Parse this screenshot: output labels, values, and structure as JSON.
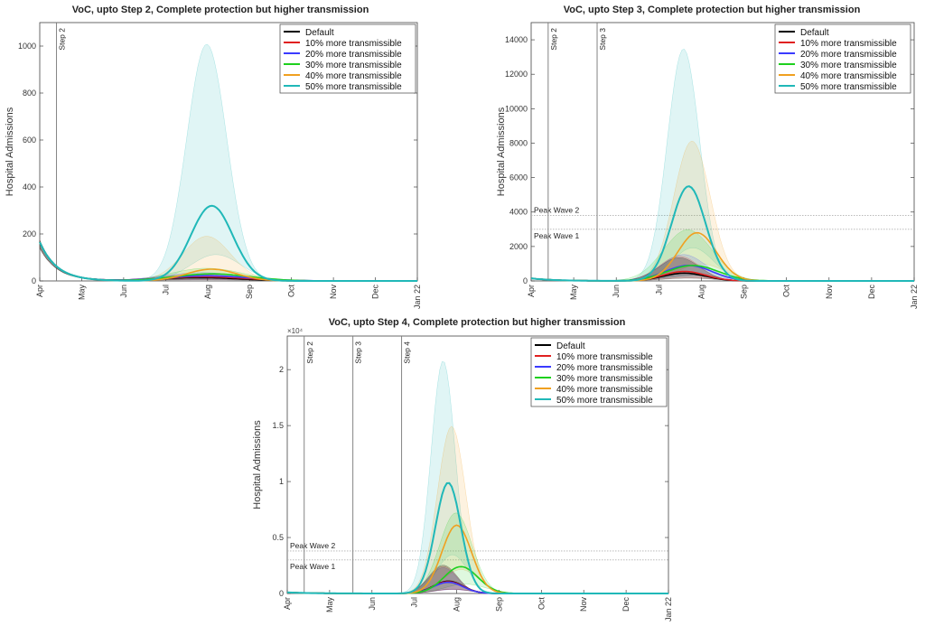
{
  "series_colors": [
    "#000000",
    "#e02020",
    "#3a3aff",
    "#1ed01e",
    "#f0a020",
    "#20b8b8"
  ],
  "chart_data": [
    {
      "type": "line",
      "title": "VoC, upto Step 2, Complete protection but higher transmission",
      "ylabel": "Hospital Admissions",
      "ylim": [
        0,
        1100
      ],
      "yticks": [
        0,
        200,
        400,
        600,
        800,
        1000
      ],
      "x_tick_labels": [
        "Apr",
        "May",
        "Jun",
        "Jul",
        "Aug",
        "Sep",
        "Oct",
        "Nov",
        "Dec",
        "Jan 22"
      ],
      "x_months_span": [
        0,
        9
      ],
      "y_exponent": "",
      "vlines": [
        {
          "x": 0.4,
          "label": "Step 2"
        }
      ],
      "hlines": [],
      "legend_position": "top-right",
      "series": [
        {
          "name": "Default",
          "peak_x": 3.8,
          "peak_y": 14,
          "width": 1.0,
          "hi_factor": 1.4,
          "start": 165,
          "decay": 0.9
        },
        {
          "name": "10% more transmissible",
          "peak_x": 3.9,
          "peak_y": 18,
          "width": 1.0,
          "hi_factor": 1.5,
          "start": 165,
          "decay": 0.9
        },
        {
          "name": "20% more transmissible",
          "peak_x": 4.0,
          "peak_y": 22,
          "width": 1.0,
          "hi_factor": 1.6,
          "start": 165,
          "decay": 0.9
        },
        {
          "name": "30% more transmissible",
          "peak_x": 4.1,
          "peak_y": 30,
          "width": 0.9,
          "hi_factor": 1.8,
          "start": 165,
          "decay": 0.9
        },
        {
          "name": "40% more transmissible",
          "peak_x": 4.1,
          "peak_y": 50,
          "width": 0.6,
          "hi_factor": 3.8,
          "start": 165,
          "decay": 0.9
        },
        {
          "name": "50% more transmissible",
          "peak_x": 4.1,
          "peak_y": 320,
          "width": 0.5,
          "hi_factor": 3.15,
          "start": 165,
          "decay": 0.9
        }
      ]
    },
    {
      "type": "line",
      "title": "VoC, upto Step 3, Complete protection but higher transmission",
      "ylabel": "Hospital Admissions",
      "ylim": [
        0,
        15000
      ],
      "yticks": [
        0,
        2000,
        4000,
        6000,
        8000,
        10000,
        12000,
        14000
      ],
      "x_tick_labels": [
        "Apr",
        "May",
        "Jun",
        "Jul",
        "Aug",
        "Sep",
        "Oct",
        "Nov",
        "Dec",
        "Jan 22"
      ],
      "x_months_span": [
        0,
        9
      ],
      "y_exponent": "",
      "vlines": [
        {
          "x": 0.4,
          "label": "Step 2"
        },
        {
          "x": 1.55,
          "label": "Step 3"
        }
      ],
      "hlines": [
        {
          "y": 3800,
          "label": "Peak Wave 2"
        },
        {
          "y": 3000,
          "label": "Peak Wave 1"
        }
      ],
      "legend_position": "top-right",
      "series": [
        {
          "name": "Default",
          "peak_x": 3.6,
          "peak_y": 450,
          "width": 0.5,
          "hi_factor": 3.0,
          "start": 150,
          "decay": 1.2
        },
        {
          "name": "10% more transmissible",
          "peak_x": 3.6,
          "peak_y": 550,
          "width": 0.5,
          "hi_factor": 2.6,
          "start": 150,
          "decay": 1.2
        },
        {
          "name": "20% more transmissible",
          "peak_x": 3.7,
          "peak_y": 900,
          "width": 0.55,
          "hi_factor": 1.7,
          "start": 150,
          "decay": 1.2
        },
        {
          "name": "30% more transmissible",
          "peak_x": 3.8,
          "peak_y": 900,
          "width": 0.6,
          "hi_factor": 3.3,
          "start": 150,
          "decay": 1.2
        },
        {
          "name": "40% more transmissible",
          "peak_x": 3.9,
          "peak_y": 2800,
          "width": 0.45,
          "hi_factor": 2.9,
          "start": 150,
          "decay": 1.2
        },
        {
          "name": "50% more transmissible",
          "peak_x": 3.7,
          "peak_y": 5500,
          "width": 0.4,
          "hi_factor": 2.45,
          "start": 150,
          "decay": 1.2
        }
      ]
    },
    {
      "type": "line",
      "title": "VoC, upto Step 4, Complete protection but higher transmission",
      "ylabel": "Hospital Admissions",
      "ylim": [
        0,
        23000
      ],
      "yticks": [
        0,
        5000,
        10000,
        15000,
        20000
      ],
      "ytick_labels": [
        "0",
        "0.5",
        "1",
        "1.5",
        "2"
      ],
      "x_tick_labels": [
        "Apr",
        "May",
        "Jun",
        "Jul",
        "Aug",
        "Sep",
        "Oct",
        "Nov",
        "Dec",
        "Jan 22"
      ],
      "x_months_span": [
        0,
        9
      ],
      "y_exponent": "×10⁴",
      "vlines": [
        {
          "x": 0.4,
          "label": "Step 2"
        },
        {
          "x": 1.55,
          "label": "Step 3"
        },
        {
          "x": 2.7,
          "label": "Step 4"
        }
      ],
      "hlines": [
        {
          "y": 3800,
          "label": "Peak Wave 2"
        },
        {
          "y": 3000,
          "label": "Peak Wave 1"
        }
      ],
      "legend_position": "top-right",
      "series": [
        {
          "name": "Default",
          "peak_x": 3.8,
          "peak_y": 1100,
          "width": 0.35,
          "hi_factor": 2.3,
          "start": 100,
          "decay": 1.2
        },
        {
          "name": "10% more transmissible",
          "peak_x": 3.8,
          "peak_y": 1050,
          "width": 0.35,
          "hi_factor": 2.3,
          "start": 100,
          "decay": 1.2
        },
        {
          "name": "20% more transmissible",
          "peak_x": 3.8,
          "peak_y": 1000,
          "width": 0.35,
          "hi_factor": 2.3,
          "start": 100,
          "decay": 1.2
        },
        {
          "name": "30% more transmissible",
          "peak_x": 4.1,
          "peak_y": 2400,
          "width": 0.4,
          "hi_factor": 3.0,
          "start": 100,
          "decay": 1.2
        },
        {
          "name": "40% more transmissible",
          "peak_x": 4.0,
          "peak_y": 6100,
          "width": 0.35,
          "hi_factor": 2.45,
          "start": 100,
          "decay": 1.2
        },
        {
          "name": "50% more transmissible",
          "peak_x": 3.8,
          "peak_y": 9900,
          "width": 0.3,
          "hi_factor": 2.1,
          "start": 100,
          "decay": 1.2
        }
      ]
    }
  ]
}
